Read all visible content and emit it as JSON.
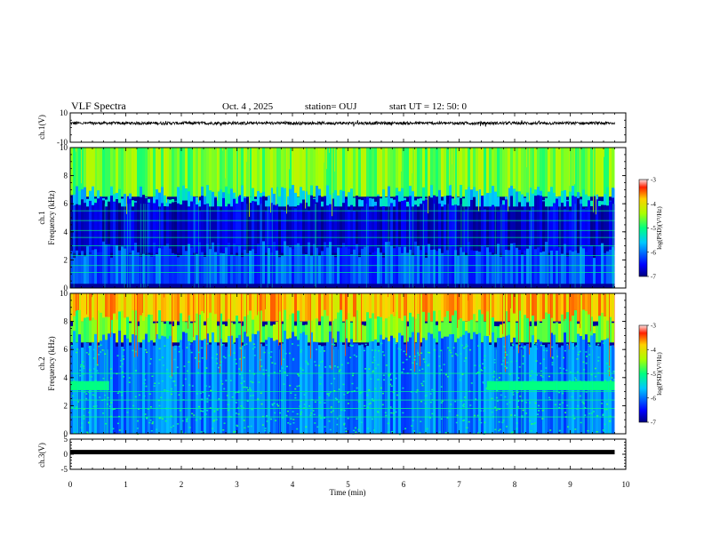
{
  "header": {
    "title": "VLF Spectra",
    "date": "Oct. 4 , 2025",
    "station": "station= OUJ",
    "start": "start UT =  12: 50: 0"
  },
  "colors": {
    "spectrogram_background": "#000099",
    "waveform": "#000000"
  },
  "chart_data": [
    {
      "type": "line",
      "id": "ch1-waveform",
      "ylabel": "ch.1(V)",
      "ylim": [
        -10,
        10
      ],
      "yticks": [
        "10",
        "-10"
      ],
      "xlim": [
        0,
        10
      ],
      "series_summary": "dense broadband waveform centered near 3 V with small fluctuations, data through ~9.8 min",
      "approx_center": 3,
      "approx_amplitude": 1
    },
    {
      "type": "heatmap",
      "id": "ch1-spectrogram",
      "ylabel": "ch.1\nFrequency (kHz)",
      "ylim": [
        0,
        10
      ],
      "yticks": [
        "0",
        "2",
        "4",
        "6",
        "8",
        "10"
      ],
      "xlim": [
        0,
        10
      ],
      "data_end_min": 9.8,
      "colorbar": {
        "label": "log(PSD)(V²/Hz)",
        "range": [
          -7,
          -3
        ],
        "ticks": [
          "-3",
          "-4",
          "-5",
          "-6",
          "-7"
        ]
      },
      "bands": [
        {
          "from_khz": 6.5,
          "to_khz": 10,
          "level": -4.6
        },
        {
          "from_khz": 5.8,
          "to_khz": 6.5,
          "level": -5.5
        },
        {
          "from_khz": 2.5,
          "to_khz": 5.8,
          "level": -6.8
        },
        {
          "from_khz": 0.3,
          "to_khz": 2.5,
          "level": -6.2
        }
      ],
      "tone_lines_khz": [
        1.1,
        1.6,
        2.3,
        3.0,
        3.6,
        4.1,
        4.8,
        5.5
      ]
    },
    {
      "type": "heatmap",
      "id": "ch2-spectrogram",
      "ylabel": "ch.2\nFrequency (kHz)",
      "ylim": [
        0,
        10
      ],
      "yticks": [
        "0",
        "2",
        "4",
        "6",
        "8",
        "10"
      ],
      "xlim": [
        0,
        10
      ],
      "data_end_min": 9.8,
      "colorbar": {
        "label": "log(PSD)(V²/Hz)",
        "range": [
          -7,
          -3
        ],
        "ticks": [
          "-3",
          "-4",
          "-5",
          "-6",
          "-7"
        ]
      },
      "bands": [
        {
          "from_khz": 8,
          "to_khz": 10,
          "level": -3.8
        },
        {
          "from_khz": 6.5,
          "to_khz": 8,
          "level": -4.6
        },
        {
          "from_khz": 0,
          "to_khz": 6.5,
          "level": -6.0
        }
      ],
      "tone_lines_khz": [
        1.2,
        1.8,
        2.4,
        3.0,
        4.3
      ],
      "band_3p4khz_segments_min": [
        [
          0,
          0.7
        ],
        [
          7.5,
          9.8
        ]
      ]
    },
    {
      "type": "line",
      "id": "ch3-waveform",
      "ylabel": "ch.3(V)",
      "ylim": [
        -5,
        5
      ],
      "yticks": [
        "5",
        "0",
        "-5"
      ],
      "xlim": [
        0,
        10
      ],
      "series_summary": "flat trace near 0.7 V, data through ~9.8 min",
      "approx_center": 0.7
    }
  ],
  "x_axis": {
    "label": "Time  (min)",
    "ticks": [
      "0",
      "1",
      "2",
      "3",
      "4",
      "5",
      "6",
      "7",
      "8",
      "9",
      "10"
    ]
  }
}
